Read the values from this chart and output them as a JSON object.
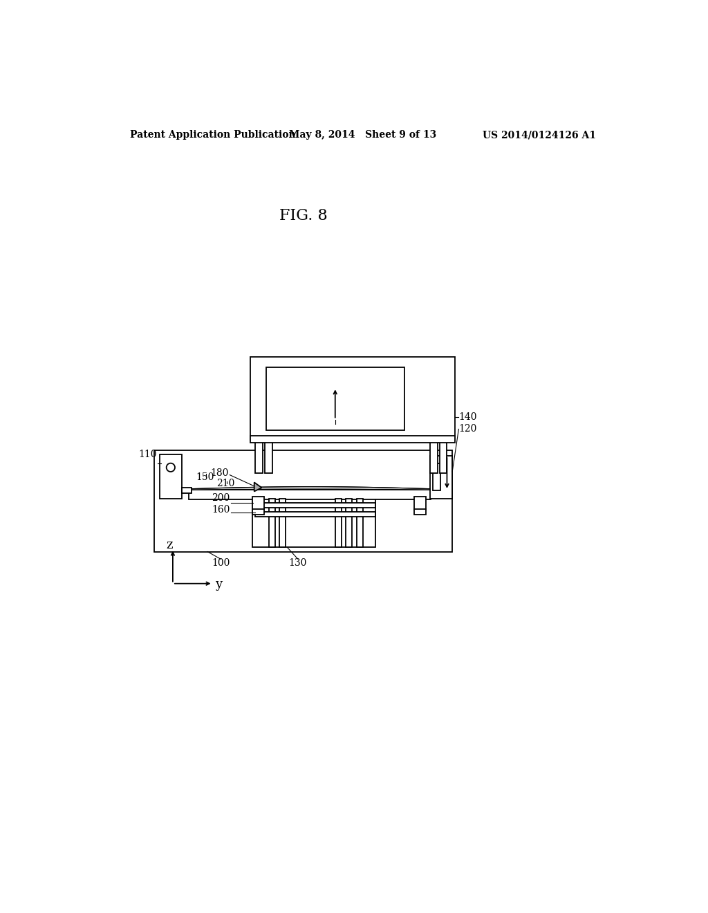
{
  "bg_color": "#ffffff",
  "lc": "#000000",
  "header_left": "Patent Application Publication",
  "header_mid": "May 8, 2014   Sheet 9 of 13",
  "header_right": "US 2014/0124126 A1",
  "fig_label": "FIG. 8",
  "lw": 1.3
}
